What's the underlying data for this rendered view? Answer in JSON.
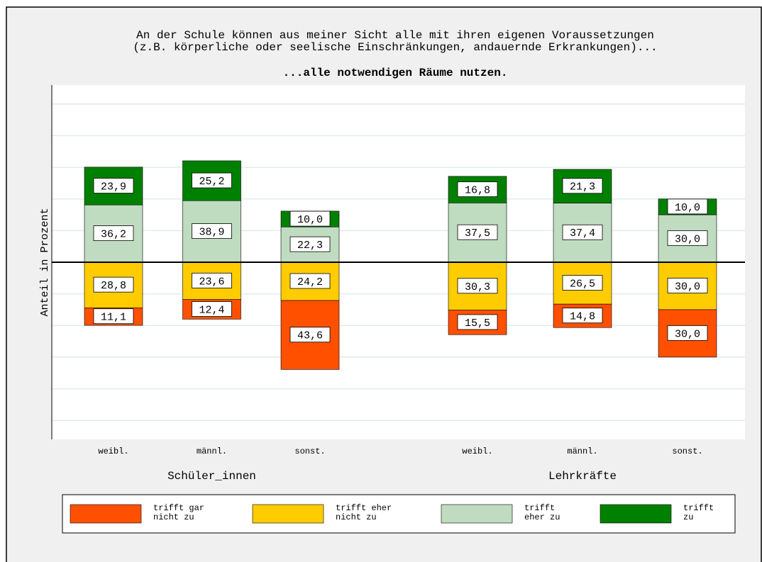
{
  "chart_data": {
    "type": "diverging-bar",
    "title": "An der Schule können aus meiner Sicht alle mit ihren eigenen Voraussetzungen\n(z.B. körperliche oder seelische Einschränkungen, andauernde Erkrankungen)...",
    "subtitle": "...alle notwendigen Räume nutzen.",
    "ylabel": "Anteil in Prozent",
    "groups": [
      {
        "name": "Schüler_innen",
        "categories": [
          "weibl.",
          "männl.",
          "sonst."
        ]
      },
      {
        "name": "Lehrkräfte",
        "categories": [
          "weibl.",
          "männl.",
          "sonst."
        ]
      }
    ],
    "series": [
      {
        "name": "trifft gar\nnicht zu",
        "color": "#ff5000",
        "direction": "down",
        "values": [
          11.1,
          12.4,
          43.6,
          15.5,
          14.8,
          30.0
        ],
        "value_labels": [
          "11,1",
          "12,4",
          "43,6",
          "15,5",
          "14,8",
          "30,0"
        ]
      },
      {
        "name": "trifft eher\nnicht zu",
        "color": "#ffcc00",
        "direction": "down",
        "values": [
          28.8,
          23.6,
          24.2,
          30.3,
          26.5,
          30.0
        ],
        "value_labels": [
          "28,8",
          "23,6",
          "24,2",
          "30,3",
          "26,5",
          "30,0"
        ]
      },
      {
        "name": "trifft\neher zu",
        "color": "#c0dcc0",
        "direction": "up",
        "values": [
          36.2,
          38.9,
          22.3,
          37.5,
          37.4,
          30.0
        ],
        "value_labels": [
          "36,2",
          "38,9",
          "22,3",
          "37,5",
          "37,4",
          "30,0"
        ]
      },
      {
        "name": "trifft\nzu",
        "color": "#008000",
        "direction": "up",
        "values": [
          23.9,
          25.2,
          10.0,
          16.8,
          21.3,
          10.0
        ],
        "value_labels": [
          "23,9",
          "25,2",
          "10,0",
          "16,8",
          "21,3",
          "10,0"
        ]
      }
    ],
    "ylim": [
      -112,
      112
    ],
    "yticks": [
      -100,
      -80,
      -60,
      -40,
      -20,
      0,
      20,
      40,
      60,
      80,
      100
    ],
    "grid": true
  }
}
